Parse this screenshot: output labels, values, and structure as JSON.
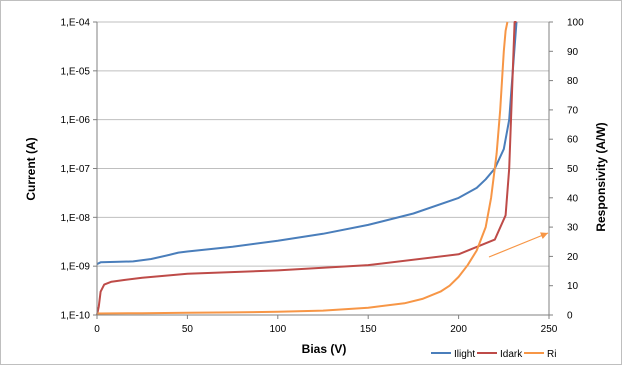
{
  "chart_data": {
    "type": "line",
    "title": "",
    "xlabel": "Bias (V)",
    "ylabel_left": "Current (A)",
    "ylabel_right": "Responsivity (A/W)",
    "xlim": [
      0,
      250
    ],
    "ylim_left": [
      1e-10,
      0.0001
    ],
    "ylim_right": [
      0,
      100
    ],
    "left_scale": "log",
    "grid": "horizontal, left axis decades",
    "legend_position": "bottom-right",
    "x_ticks": [
      "0",
      "50",
      "100",
      "150",
      "200",
      "250"
    ],
    "left_ticks": [
      "1,E-10",
      "1,E-09",
      "1,E-08",
      "1,E-07",
      "1,E-06",
      "1,E-05",
      "1,E-04"
    ],
    "right_ticks": [
      "0",
      "10",
      "20",
      "30",
      "40",
      "50",
      "60",
      "70",
      "80",
      "90",
      "100"
    ],
    "series": [
      {
        "name": "Ilight",
        "axis": "left",
        "color": "#4a7ebb",
        "x": [
          0,
          2,
          10,
          20,
          30,
          40,
          45,
          50,
          75,
          100,
          125,
          150,
          175,
          200,
          210,
          215,
          220,
          225,
          228,
          230,
          232
        ],
        "y": [
          1.1e-09,
          1.2e-09,
          1.22e-09,
          1.25e-09,
          1.4e-09,
          1.7e-09,
          1.9e-09,
          2e-09,
          2.5e-09,
          3.3e-09,
          4.6e-09,
          7e-09,
          1.2e-08,
          2.5e-08,
          4e-08,
          6e-08,
          1e-07,
          2.5e-07,
          1e-06,
          1e-05,
          0.0001
        ]
      },
      {
        "name": "Idark",
        "axis": "left",
        "color": "#be4b48",
        "x": [
          0,
          1,
          2,
          4,
          8,
          15,
          25,
          50,
          100,
          150,
          200,
          220,
          226,
          228,
          229,
          230,
          231,
          232
        ],
        "y": [
          1e-10,
          1.5e-10,
          3e-10,
          4.2e-10,
          4.8e-10,
          5.2e-10,
          5.8e-10,
          7e-10,
          8.2e-10,
          1.05e-09,
          1.75e-09,
          3.5e-09,
          1.1e-08,
          1e-07,
          1e-06,
          1e-05,
          0.0001,
          0.0001
        ]
      },
      {
        "name": "Ri",
        "axis": "right",
        "color": "#f79646",
        "x": [
          0,
          25,
          50,
          75,
          100,
          125,
          150,
          170,
          180,
          190,
          195,
          200,
          205,
          210,
          215,
          218,
          221,
          223,
          224,
          225,
          226,
          227
        ],
        "y": [
          0.5,
          0.6,
          0.8,
          0.9,
          1.1,
          1.5,
          2.5,
          4,
          5.5,
          8,
          10,
          13,
          17,
          22,
          30,
          40,
          55,
          70,
          80,
          90,
          97,
          100
        ]
      }
    ]
  },
  "legend": {
    "items": [
      {
        "label": "Ilight",
        "color": "#4a7ebb"
      },
      {
        "label": "Idark",
        "color": "#be4b48"
      },
      {
        "label": "Ri",
        "color": "#f79646"
      }
    ]
  },
  "annotation": {
    "type": "arrow",
    "color": "#f79646",
    "points_to": "right axis"
  }
}
